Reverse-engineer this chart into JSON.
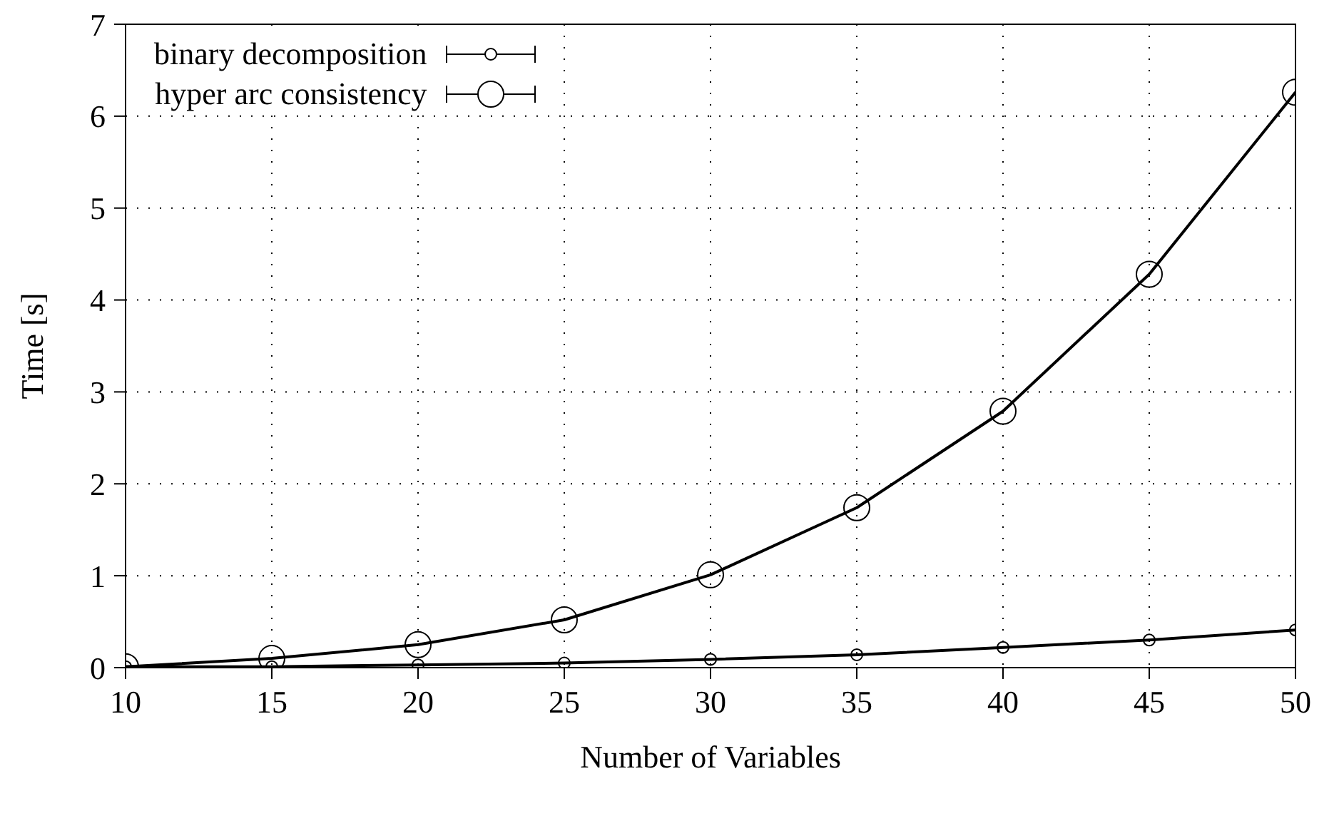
{
  "chart_data": {
    "type": "line",
    "xlabel": "Number of Variables",
    "ylabel": "Time [s]",
    "x": [
      10,
      15,
      20,
      25,
      30,
      35,
      40,
      45,
      50
    ],
    "series": [
      {
        "name": "binary decomposition",
        "color": "#000000",
        "values": [
          0.01,
          0.01,
          0.03,
          0.05,
          0.09,
          0.14,
          0.22,
          0.3,
          0.41
        ]
      },
      {
        "name": "hyper arc consistency",
        "color": "#000000",
        "values": [
          0.01,
          0.1,
          0.25,
          0.52,
          1.01,
          1.74,
          2.79,
          4.28,
          6.26
        ]
      }
    ],
    "xlim": [
      10,
      50
    ],
    "xticks": [
      10,
      15,
      20,
      25,
      30,
      35,
      40,
      45,
      50
    ],
    "ylim": [
      0,
      7
    ],
    "yticks": [
      0,
      1,
      2,
      3,
      4,
      5,
      6,
      7
    ],
    "grid": true,
    "legend": "top left",
    "marker": "circle",
    "line_style": "solid"
  }
}
